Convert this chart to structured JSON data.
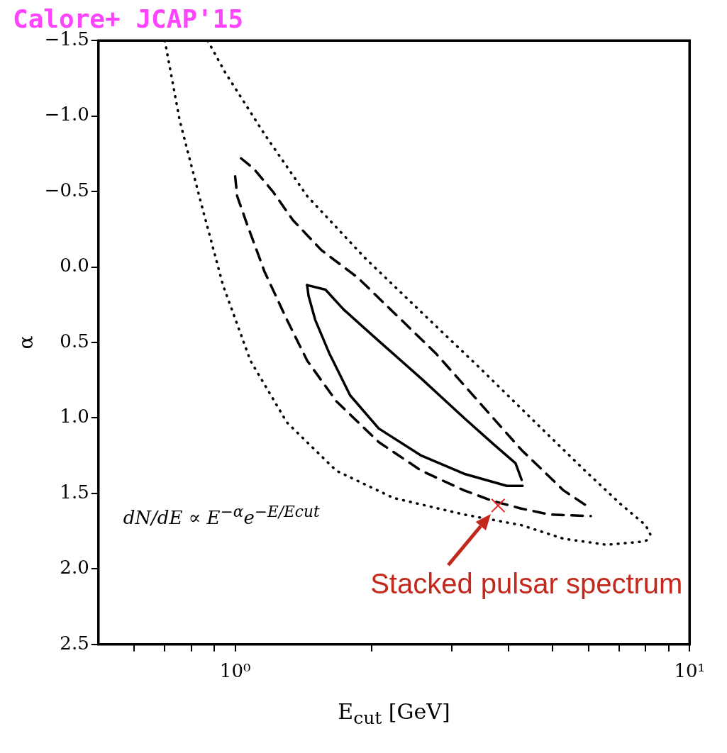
{
  "chart_data": {
    "type": "line",
    "title": "Calore+ JCAP'15",
    "xlabel": "E$_{cut}$ [GeV]",
    "ylabel": "α",
    "log": "x",
    "grid": false,
    "legend": false,
    "xlim": [
      0.5,
      10
    ],
    "xticks": [
      {
        "value": 0.6,
        "label": null
      },
      {
        "value": 0.7,
        "label": null
      },
      {
        "value": 0.8,
        "label": null
      },
      {
        "value": 0.9,
        "label": null
      },
      {
        "value": 1,
        "label": "10⁰"
      },
      {
        "value": 2,
        "label": null
      },
      {
        "value": 3,
        "label": null
      },
      {
        "value": 4,
        "label": null
      },
      {
        "value": 5,
        "label": null
      },
      {
        "value": 6,
        "label": null
      },
      {
        "value": 7,
        "label": null
      },
      {
        "value": 8,
        "label": null
      },
      {
        "value": 9,
        "label": null
      },
      {
        "value": 10,
        "label": "10¹"
      }
    ],
    "ylim": [
      2.5,
      -1.5
    ],
    "yticks": [
      {
        "value": -1.5,
        "label": "−1.5"
      },
      {
        "value": -1,
        "label": "−1.0"
      },
      {
        "value": -0.5,
        "label": "−0.5"
      },
      {
        "value": 0,
        "label": "0.0"
      },
      {
        "value": 0.5,
        "label": "0.5"
      },
      {
        "value": 1,
        "label": "1.0"
      },
      {
        "value": 1.5,
        "label": "1.5"
      },
      {
        "value": 2,
        "label": "2.0"
      },
      {
        "value": 2.5,
        "label": "2.5"
      }
    ],
    "series": [
      {
        "line_style": "solid",
        "color": "#000000",
        "x": [
          1.44,
          1.58,
          1.73,
          2.07,
          2.57,
          3.19,
          3.69,
          4.14,
          4.27
        ],
        "values": [
          0.12,
          0.15,
          0.28,
          0.49,
          0.74,
          1.0,
          1.17,
          1.3,
          1.41
        ]
      },
      {
        "line_style": "solid",
        "color": "#000000",
        "x": [
          1.44,
          1.45,
          1.5,
          1.61,
          1.79,
          2.07,
          2.57,
          3.19,
          3.96,
          4.29
        ],
        "values": [
          0.12,
          0.19,
          0.35,
          0.57,
          0.85,
          1.07,
          1.25,
          1.37,
          1.45,
          1.45
        ]
      },
      {
        "line_style": "dashed",
        "color": "#000000",
        "x": [
          1.03,
          1.1,
          1.21,
          1.34,
          1.55,
          1.86,
          2.23,
          2.76,
          3.43,
          4.26,
          5.28,
          6.06
        ],
        "values": [
          -0.72,
          -0.65,
          -0.5,
          -0.31,
          -0.11,
          0.07,
          0.3,
          0.57,
          0.89,
          1.21,
          1.48,
          1.6
        ]
      },
      {
        "line_style": "dashed",
        "color": "#000000",
        "x": [
          1.0,
          1.01,
          1.06,
          1.16,
          1.3,
          1.44,
          1.67,
          2.07,
          2.57,
          3.19,
          3.69,
          4.26,
          4.92,
          6.06
        ],
        "values": [
          -0.6,
          -0.47,
          -0.29,
          0.03,
          0.35,
          0.62,
          0.89,
          1.16,
          1.35,
          1.48,
          1.55,
          1.6,
          1.64,
          1.65
        ]
      },
      {
        "line_style": "dotted",
        "color": "#000000",
        "x": [
          0.87,
          0.95,
          1.16,
          1.44,
          1.93,
          2.57,
          3.43,
          4.58,
          5.89,
          7.05,
          8.0,
          8.29
        ],
        "values": [
          -1.5,
          -1.29,
          -0.88,
          -0.47,
          -0.06,
          0.3,
          0.66,
          1.03,
          1.35,
          1.57,
          1.71,
          1.8
        ]
      },
      {
        "line_style": "dotted",
        "color": "#000000",
        "x": [
          0.7,
          0.755,
          0.84,
          0.94,
          1.08,
          1.3,
          1.67,
          2.23,
          3.19,
          4.26,
          5.28,
          6.56,
          7.85,
          8.29
        ],
        "values": [
          -1.5,
          -0.97,
          -0.43,
          0.12,
          0.62,
          1.03,
          1.35,
          1.53,
          1.64,
          1.71,
          1.8,
          1.84,
          1.82,
          1.8
        ]
      },
      {
        "type": "scatter",
        "marker": "cross",
        "color": "#ee2222",
        "x": [
          3.79
        ],
        "values": [
          1.58
        ]
      }
    ],
    "annotations": [
      "dN/dE ∝ E$^{−α}$e$^{−E/Ecut}$",
      {
        "text": "Stacked pulsar spectrum",
        "x": 3.79,
        "y": 1.58
      }
    ]
  }
}
